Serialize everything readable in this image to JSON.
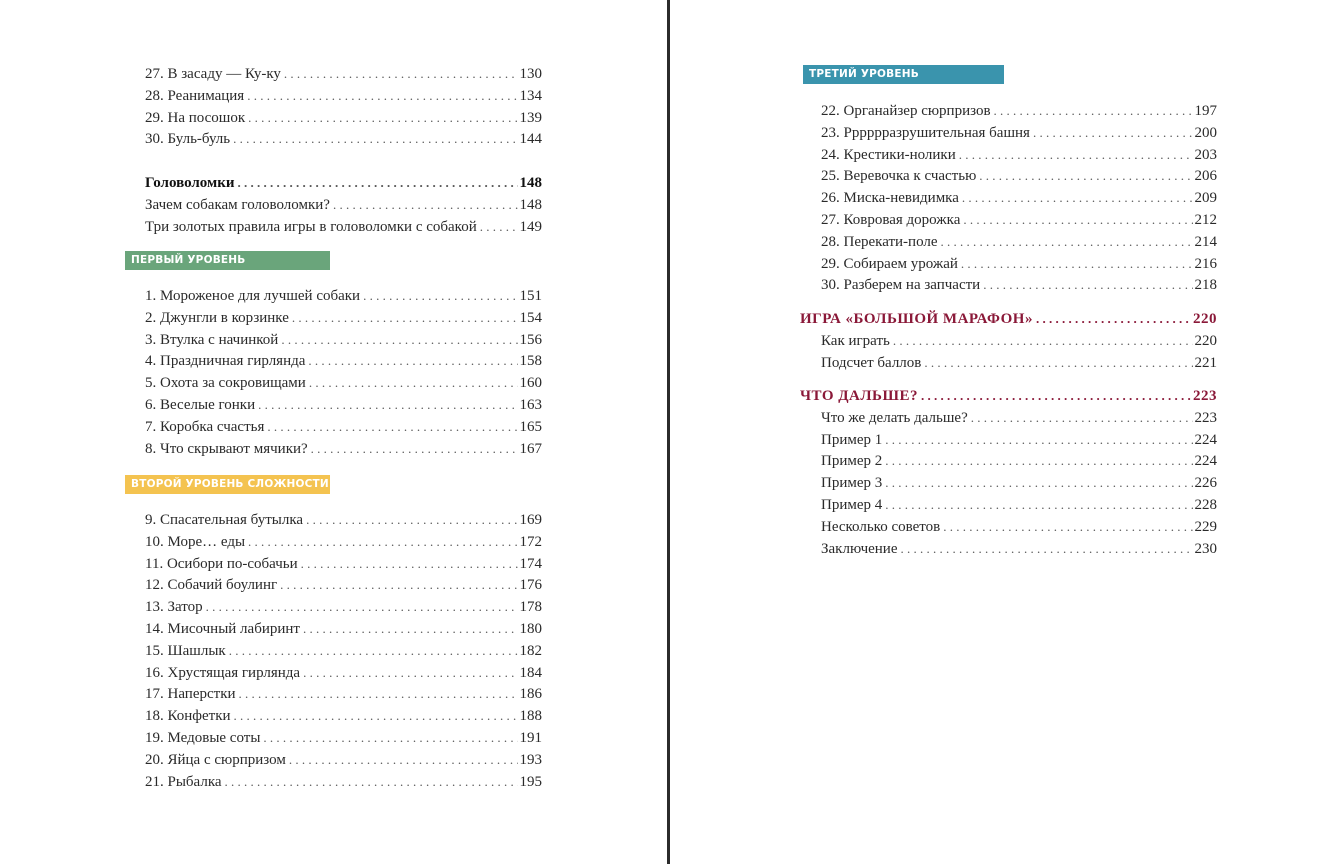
{
  "colors": {
    "level1": "#6aa57b",
    "level2": "#f4c350",
    "level3": "#3a94ad",
    "heading_red": "#8a1838"
  },
  "left": {
    "top_entries": [
      {
        "title": "27. В засаду — Ку-ку",
        "page": "130"
      },
      {
        "title": "28. Реанимация",
        "page": "134"
      },
      {
        "title": "29. На посошок",
        "page": "139"
      },
      {
        "title": "30. Буль-буль",
        "page": "144"
      }
    ],
    "section_heading": {
      "title": "Головоломки",
      "page": "148"
    },
    "section_entries": [
      {
        "title": "Зачем собакам головоломки?",
        "page": "148"
      },
      {
        "title": "Три золотых правила игры в головоломки с собакой",
        "page": "149"
      }
    ],
    "level1_label": "ПЕРВЫЙ УРОВЕНЬ СЛОЖНОСТИ",
    "level1_entries": [
      {
        "title": "1. Мороженое для лучшей собаки",
        "page": "151"
      },
      {
        "title": "2. Джунгли в корзинке",
        "page": "154"
      },
      {
        "title": "3. Втулка с начинкой",
        "page": "156"
      },
      {
        "title": "4. Праздничная гирлянда",
        "page": "158"
      },
      {
        "title": "5. Охота за сокровищами",
        "page": "160"
      },
      {
        "title": "6. Веселые гонки",
        "page": "163"
      },
      {
        "title": "7. Коробка счастья",
        "page": "165"
      },
      {
        "title": "8. Что скрывают мячики?",
        "page": "167"
      }
    ],
    "level2_label": "ВТОРОЙ УРОВЕНЬ СЛОЖНОСТИ",
    "level2_entries": [
      {
        "title": "9. Спасательная бутылка",
        "page": "169"
      },
      {
        "title": "10. Море… еды",
        "page": "172"
      },
      {
        "title": "11. Осибори по-собачьи",
        "page": "174"
      },
      {
        "title": "12. Собачий боулинг",
        "page": "176"
      },
      {
        "title": "13. Затор",
        "page": "178"
      },
      {
        "title": "14. Мисочный лабиринт",
        "page": "180"
      },
      {
        "title": "15. Шашлык",
        "page": "182"
      },
      {
        "title": "16. Хрустящая гирлянда",
        "page": "184"
      },
      {
        "title": "17. Наперстки",
        "page": "186"
      },
      {
        "title": "18. Конфетки",
        "page": "188"
      },
      {
        "title": "19. Медовые соты",
        "page": "191"
      },
      {
        "title": "20. Яйца с сюрпризом",
        "page": "193"
      },
      {
        "title": "21. Рыбалка",
        "page": "195"
      }
    ]
  },
  "right": {
    "level3_label": "ТРЕТИЙ УРОВЕНЬ СЛОЖНОСТИ",
    "level3_entries": [
      {
        "title": "22. Органайзер сюрпризов",
        "page": "197"
      },
      {
        "title": "23. Рррррразрушительная башня",
        "page": "200"
      },
      {
        "title": "24. Крестики-нолики",
        "page": "203"
      },
      {
        "title": "25. Веревочка к счастью",
        "page": "206"
      },
      {
        "title": "26. Миска-невидимка",
        "page": "209"
      },
      {
        "title": "27. Ковровая дорожка",
        "page": "212"
      },
      {
        "title": "28. Перекати-поле",
        "page": "214"
      },
      {
        "title": "29. Собираем урожай",
        "page": "216"
      },
      {
        "title": "30. Разберем на запчасти",
        "page": "218"
      }
    ],
    "marathon_heading": {
      "title": "ИГРА «БОЛЬШОЙ МАРАФОН»",
      "page": "220"
    },
    "marathon_entries": [
      {
        "title": "Как играть",
        "page": "220"
      },
      {
        "title": "Подсчет баллов",
        "page": "221"
      }
    ],
    "next_heading": {
      "title": "ЧТО ДАЛЬШЕ?",
      "page": "223"
    },
    "next_entries": [
      {
        "title": "Что же делать дальше?",
        "page": "223"
      },
      {
        "title": "Пример 1",
        "page": "224"
      },
      {
        "title": "Пример 2",
        "page": "224"
      },
      {
        "title": "Пример 3",
        "page": "226"
      },
      {
        "title": "Пример 4",
        "page": "228"
      },
      {
        "title": "Несколько советов",
        "page": "229"
      },
      {
        "title": "Заключение",
        "page": "230"
      }
    ]
  }
}
